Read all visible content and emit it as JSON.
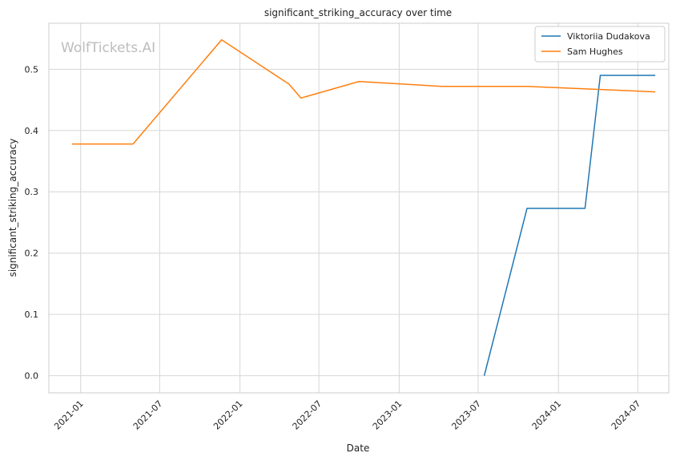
{
  "chart_data": {
    "type": "line",
    "title": "significant_striking_accuracy over time",
    "xlabel": "Date",
    "ylabel": "significant_striking_accuracy",
    "xlim": [
      "2020-10-20",
      "2024-09-10"
    ],
    "ylim": [
      -0.028,
      0.575
    ],
    "x_ticks": [
      "2021-01",
      "2021-07",
      "2022-01",
      "2022-07",
      "2023-01",
      "2023-07",
      "2024-01",
      "2024-07"
    ],
    "y_ticks": [
      "0.0",
      "0.1",
      "0.2",
      "0.3",
      "0.4",
      "0.5"
    ],
    "grid": true,
    "legend_position": "top-right",
    "watermark": "WolfTickets.AI",
    "colors": {
      "series_1": "#1f77b4",
      "series_2": "#ff7f0e"
    },
    "series": [
      {
        "name": "Viktoriia Dudakova",
        "color": "#1f77b4",
        "x": [
          "2023-07-15",
          "2023-10-21",
          "2024-03-02",
          "2024-04-06",
          "2024-08-10"
        ],
        "y": [
          0.0,
          0.273,
          0.273,
          0.49,
          0.49
        ]
      },
      {
        "name": "Sam Hughes",
        "color": "#ff7f0e",
        "x": [
          "2020-12-12",
          "2021-05-01",
          "2021-11-20",
          "2022-04-23",
          "2022-05-21",
          "2022-10-01",
          "2023-04-08",
          "2023-10-21",
          "2024-04-06",
          "2024-08-10"
        ],
        "y": [
          0.378,
          0.378,
          0.548,
          0.476,
          0.453,
          0.48,
          0.472,
          0.472,
          0.467,
          0.463
        ]
      }
    ]
  }
}
